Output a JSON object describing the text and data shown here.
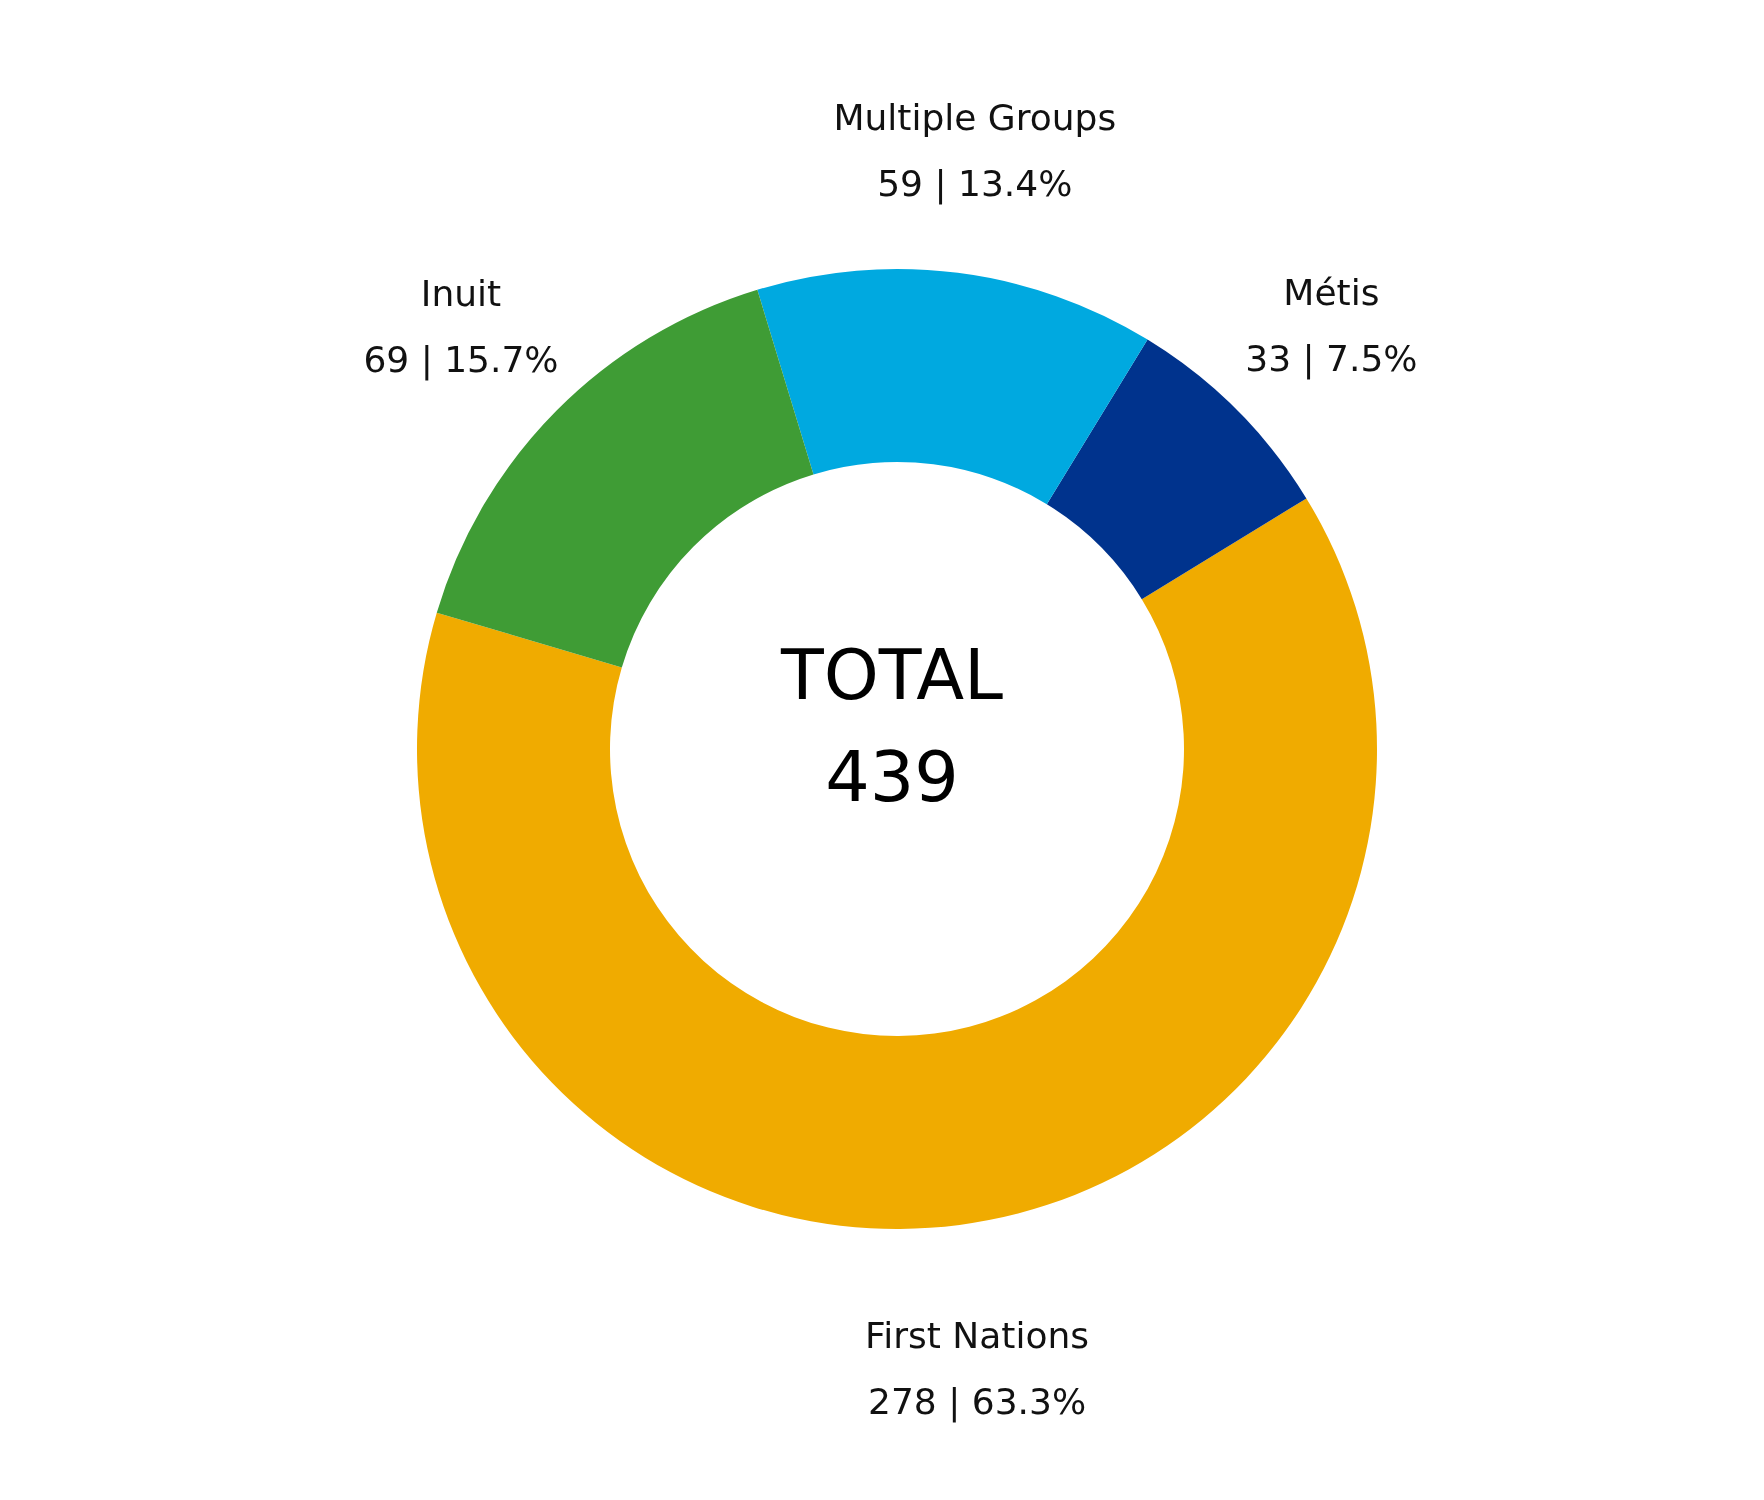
{
  "chart_data": {
    "type": "donut",
    "categories": [
      "First Nations",
      "Métis",
      "Multiple Groups",
      "Inuit"
    ],
    "values": [
      278,
      33,
      59,
      69
    ],
    "colors": [
      "#f0ab00",
      "#00338d",
      "#00a9e0",
      "#3f9c35"
    ],
    "value_labels": [
      "278 | 63.3%",
      "33 | 7.5%",
      "59 | 13.4%",
      "69 | 15.7%"
    ],
    "annotations": [
      "TOTAL",
      "439"
    ],
    "legend": false
  }
}
